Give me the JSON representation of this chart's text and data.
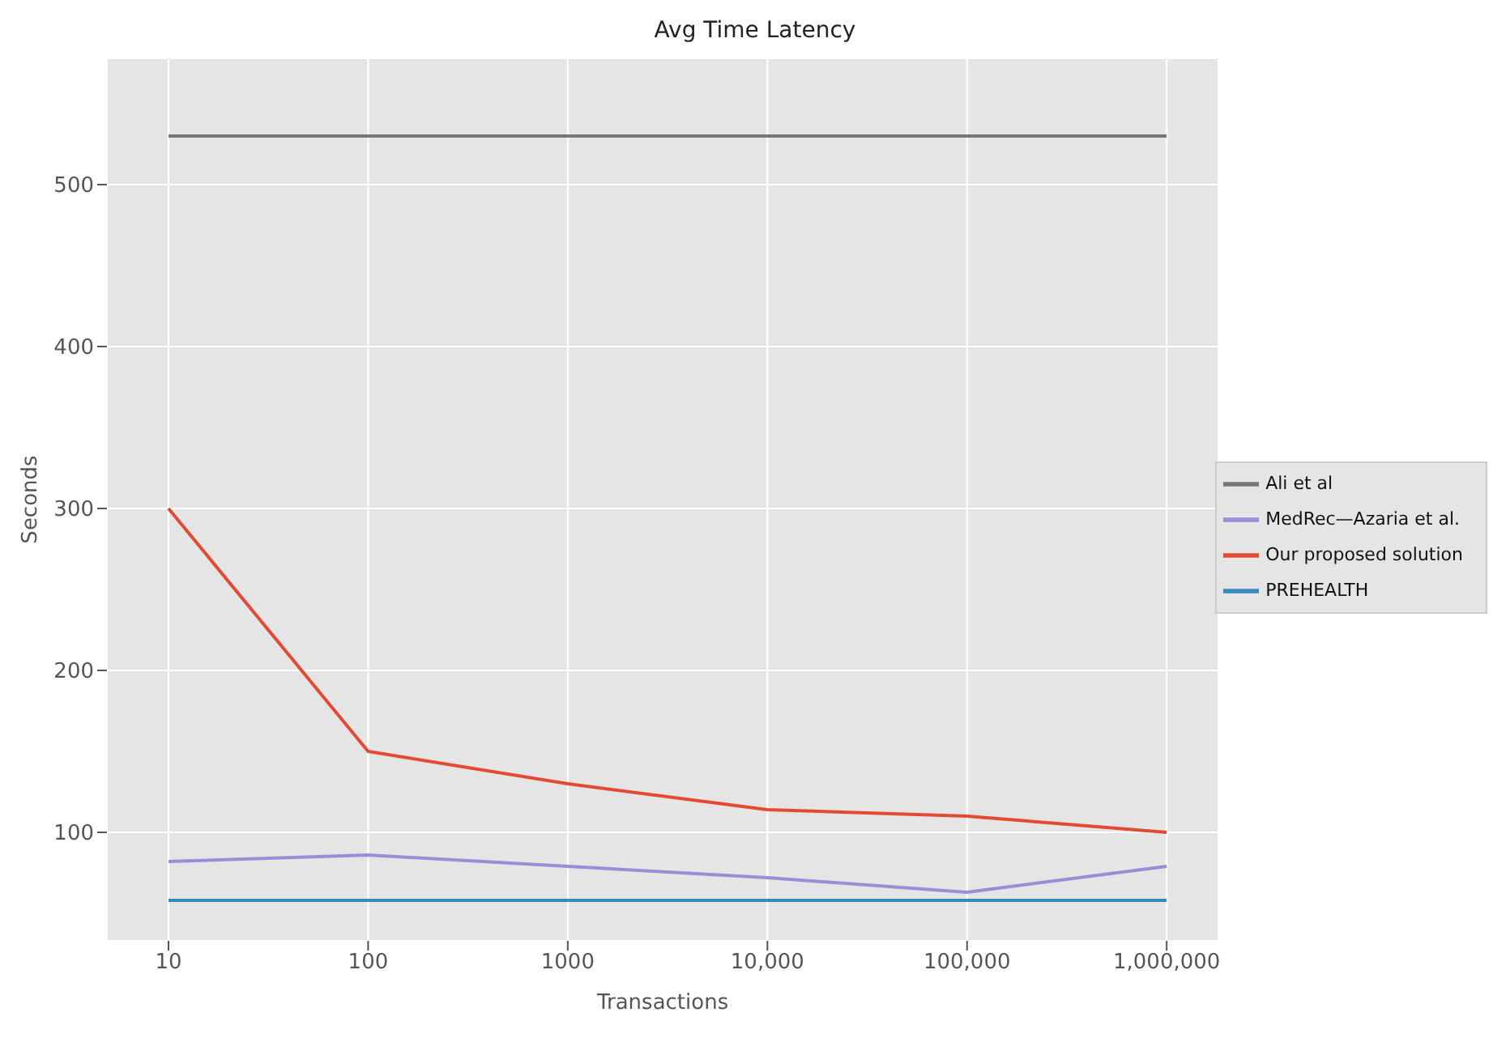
{
  "chart_data": {
    "type": "line",
    "title": "Avg Time Latency",
    "xlabel": "Transactions",
    "ylabel": "Seconds",
    "categories": [
      "10",
      "100",
      "1000",
      "10,000",
      "100,000",
      "1,000,000"
    ],
    "series": [
      {
        "name": "Our proposed solution",
        "color": "#e24a33",
        "values": [
          300,
          150,
          130,
          114,
          110,
          100
        ]
      },
      {
        "name": "PREHEALTH",
        "color": "#348abd",
        "values": [
          58,
          58,
          58,
          58,
          58,
          58
        ]
      },
      {
        "name": "MedRec—Azaria et al.",
        "color": "#988ed5",
        "values": [
          82,
          86,
          79,
          72,
          63,
          79
        ]
      },
      {
        "name": "Ali et al",
        "color": "#777777",
        "values": [
          530,
          530,
          530,
          530,
          530,
          530
        ]
      }
    ],
    "ylim": [
      33,
      578
    ],
    "yticks": [
      100,
      200,
      300,
      400,
      500
    ],
    "grid": true,
    "legend": "right",
    "marker": "none",
    "line_style": "solid"
  }
}
